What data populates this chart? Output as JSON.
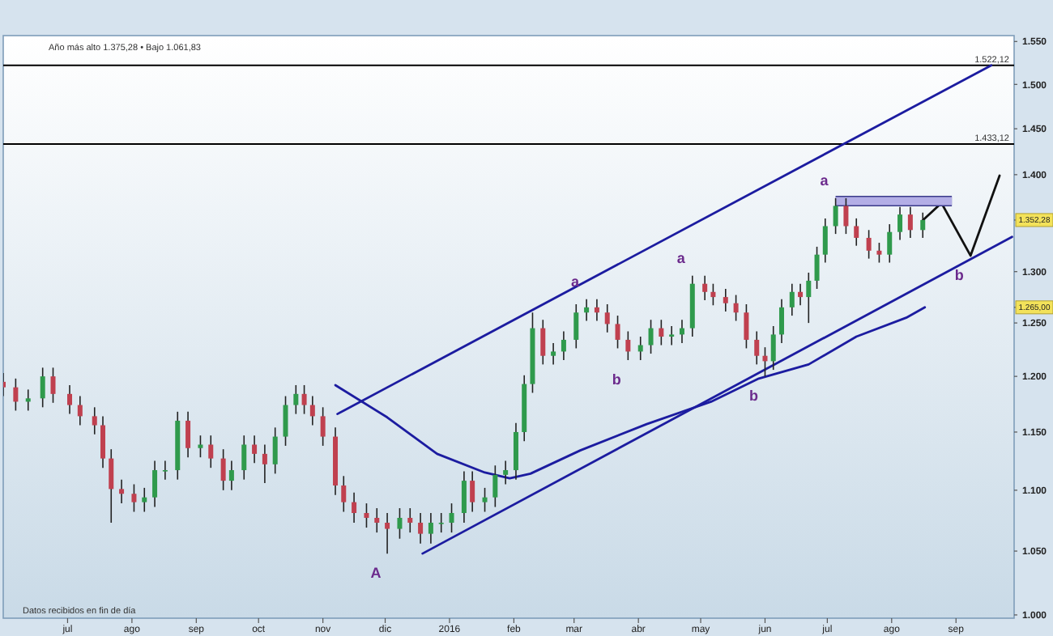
{
  "chart_data": {
    "type": "candlestick",
    "subtitle": "Año más alto 1.375,28 • Bajo 1.061,83",
    "log": "y",
    "xlim": [
      "2015-05-31",
      "2016-09-29"
    ],
    "ylim": [
      997.5,
      1557
    ],
    "xticks": [
      {
        "value": "2015-07-01",
        "label": "jul"
      },
      {
        "value": "2015-08-01",
        "label": "ago"
      },
      {
        "value": "2015-09-01",
        "label": "sep"
      },
      {
        "value": "2015-10-01",
        "label": "oct"
      },
      {
        "value": "2015-11-01",
        "label": "nov"
      },
      {
        "value": "2015-12-01",
        "label": "dic"
      },
      {
        "value": "2016-01-01",
        "label": "2016"
      },
      {
        "value": "2016-02-01",
        "label": "feb"
      },
      {
        "value": "2016-03-01",
        "label": "mar"
      },
      {
        "value": "2016-04-01",
        "label": "abr"
      },
      {
        "value": "2016-05-01",
        "label": "may"
      },
      {
        "value": "2016-06-01",
        "label": "jun"
      },
      {
        "value": "2016-07-01",
        "label": "jul"
      },
      {
        "value": "2016-08-01",
        "label": "ago"
      },
      {
        "value": "2016-09-01",
        "label": "sep"
      }
    ],
    "yticks": [
      {
        "value": 1000,
        "label": "1.000"
      },
      {
        "value": 1050,
        "label": "1.050"
      },
      {
        "value": 1100,
        "label": "1.100"
      },
      {
        "value": 1150,
        "label": "1.150"
      },
      {
        "value": 1200,
        "label": "1.200"
      },
      {
        "value": 1250,
        "label": "1.250"
      },
      {
        "value": 1300,
        "label": "1.300"
      },
      {
        "value": 1265,
        "label": "1.265,00"
      },
      {
        "value": 1352.28,
        "label": "1.352,28"
      },
      {
        "value": 1400,
        "label": "1.400"
      },
      {
        "value": 1450,
        "label": "1.450"
      },
      {
        "value": 1500,
        "label": "1.500"
      },
      {
        "value": 1550,
        "label": "1.550"
      }
    ],
    "x": [
      "2015-05-31",
      "2015-06-06",
      "2015-06-12",
      "2015-06-19",
      "2015-06-24",
      "2015-07-02",
      "2015-07-07",
      "2015-07-14",
      "2015-07-18",
      "2015-07-22",
      "2015-07-27",
      "2015-08-02",
      "2015-08-07",
      "2015-08-12",
      "2015-08-17",
      "2015-08-23",
      "2015-08-28",
      "2015-09-03",
      "2015-09-08",
      "2015-09-14",
      "2015-09-18",
      "2015-09-24",
      "2015-09-29",
      "2015-10-04",
      "2015-10-09",
      "2015-10-14",
      "2015-10-19",
      "2015-10-23",
      "2015-10-27",
      "2015-11-01",
      "2015-11-07",
      "2015-11-11",
      "2015-11-16",
      "2015-11-22",
      "2015-11-27",
      "2015-12-02",
      "2015-12-08",
      "2015-12-13",
      "2015-12-18",
      "2015-12-23",
      "2015-12-28",
      "2016-01-02",
      "2016-01-08",
      "2016-01-12",
      "2016-01-18",
      "2016-01-23",
      "2016-01-28",
      "2016-02-02",
      "2016-02-06",
      "2016-02-10",
      "2016-02-15",
      "2016-02-20",
      "2016-02-25",
      "2016-03-02",
      "2016-03-07",
      "2016-03-12",
      "2016-03-17",
      "2016-03-22",
      "2016-03-27",
      "2016-04-02",
      "2016-04-07",
      "2016-04-12",
      "2016-04-17",
      "2016-04-22",
      "2016-04-27",
      "2016-05-03",
      "2016-05-07",
      "2016-05-13",
      "2016-05-18",
      "2016-05-23",
      "2016-05-28",
      "2016-06-01",
      "2016-06-05",
      "2016-06-09",
      "2016-06-14",
      "2016-06-18",
      "2016-06-22",
      "2016-06-26",
      "2016-06-30",
      "2016-07-05",
      "2016-07-10",
      "2016-07-15",
      "2016-07-21",
      "2016-07-26",
      "2016-07-31",
      "2016-08-05",
      "2016-08-10",
      "2016-08-16"
    ],
    "ohlc": [
      [
        1195,
        1203,
        1182,
        1190
      ],
      [
        1190,
        1198,
        1169,
        1177
      ],
      [
        1177,
        1188,
        1169,
        1180
      ],
      [
        1180,
        1208,
        1172,
        1200
      ],
      [
        1200,
        1208,
        1176,
        1184
      ],
      [
        1184,
        1192,
        1166,
        1174
      ],
      [
        1174,
        1182,
        1156,
        1164
      ],
      [
        1164,
        1172,
        1148,
        1156
      ],
      [
        1156,
        1164,
        1119,
        1127
      ],
      [
        1127,
        1135,
        1073,
        1101
      ],
      [
        1101,
        1109,
        1089,
        1097
      ],
      [
        1097,
        1105,
        1082,
        1090
      ],
      [
        1090,
        1102,
        1082,
        1094
      ],
      [
        1094,
        1125,
        1086,
        1117
      ],
      [
        1117,
        1125,
        1109,
        1117
      ],
      [
        1117,
        1168,
        1109,
        1160
      ],
      [
        1160,
        1168,
        1128,
        1136
      ],
      [
        1136,
        1147,
        1128,
        1139
      ],
      [
        1139,
        1147,
        1119,
        1127
      ],
      [
        1127,
        1135,
        1100,
        1108
      ],
      [
        1108,
        1125,
        1100,
        1117
      ],
      [
        1117,
        1147,
        1109,
        1139
      ],
      [
        1139,
        1147,
        1123,
        1131
      ],
      [
        1131,
        1139,
        1106,
        1122
      ],
      [
        1122,
        1154,
        1114,
        1146
      ],
      [
        1146,
        1182,
        1138,
        1174
      ],
      [
        1174,
        1192,
        1166,
        1184
      ],
      [
        1184,
        1192,
        1166,
        1174
      ],
      [
        1174,
        1182,
        1156,
        1164
      ],
      [
        1164,
        1172,
        1138,
        1146
      ],
      [
        1146,
        1154,
        1096,
        1104
      ],
      [
        1104,
        1112,
        1082,
        1090
      ],
      [
        1090,
        1098,
        1073,
        1081
      ],
      [
        1081,
        1089,
        1069,
        1077
      ],
      [
        1077,
        1085,
        1065,
        1073
      ],
      [
        1073,
        1081,
        1048,
        1068
      ],
      [
        1068,
        1085,
        1060,
        1077
      ],
      [
        1077,
        1085,
        1065,
        1073
      ],
      [
        1073,
        1081,
        1056,
        1064
      ],
      [
        1064,
        1081,
        1056,
        1073
      ],
      [
        1073,
        1081,
        1065,
        1073
      ],
      [
        1073,
        1089,
        1065,
        1081
      ],
      [
        1081,
        1116,
        1073,
        1108
      ],
      [
        1108,
        1116,
        1082,
        1090
      ],
      [
        1090,
        1102,
        1082,
        1094
      ],
      [
        1094,
        1121,
        1086,
        1113
      ],
      [
        1113,
        1125,
        1105,
        1117
      ],
      [
        1117,
        1158,
        1109,
        1150
      ],
      [
        1150,
        1201,
        1142,
        1193
      ],
      [
        1193,
        1260,
        1185,
        1245
      ],
      [
        1245,
        1253,
        1211,
        1219
      ],
      [
        1219,
        1231,
        1211,
        1223
      ],
      [
        1223,
        1242,
        1215,
        1234
      ],
      [
        1234,
        1268,
        1226,
        1260
      ],
      [
        1260,
        1273,
        1252,
        1265
      ],
      [
        1265,
        1273,
        1252,
        1260
      ],
      [
        1260,
        1268,
        1241,
        1249
      ],
      [
        1249,
        1257,
        1226,
        1234
      ],
      [
        1234,
        1242,
        1215,
        1223
      ],
      [
        1223,
        1237,
        1215,
        1229
      ],
      [
        1229,
        1253,
        1221,
        1245
      ],
      [
        1245,
        1253,
        1229,
        1237
      ],
      [
        1237,
        1247,
        1229,
        1239
      ],
      [
        1239,
        1253,
        1231,
        1245
      ],
      [
        1245,
        1296,
        1237,
        1288
      ],
      [
        1288,
        1296,
        1272,
        1280
      ],
      [
        1280,
        1288,
        1267,
        1275
      ],
      [
        1275,
        1283,
        1261,
        1269
      ],
      [
        1269,
        1277,
        1252,
        1260
      ],
      [
        1260,
        1268,
        1226,
        1234
      ],
      [
        1234,
        1242,
        1211,
        1219
      ],
      [
        1219,
        1227,
        1200,
        1214
      ],
      [
        1214,
        1247,
        1206,
        1239
      ],
      [
        1239,
        1273,
        1231,
        1265
      ],
      [
        1265,
        1288,
        1257,
        1280
      ],
      [
        1280,
        1288,
        1267,
        1275
      ],
      [
        1275,
        1299,
        1250,
        1291
      ],
      [
        1291,
        1325,
        1283,
        1317
      ],
      [
        1317,
        1354,
        1309,
        1346
      ],
      [
        1346,
        1375,
        1338,
        1367
      ],
      [
        1367,
        1375,
        1338,
        1346
      ],
      [
        1346,
        1354,
        1326,
        1334
      ],
      [
        1334,
        1342,
        1313,
        1321
      ],
      [
        1321,
        1329,
        1309,
        1317
      ],
      [
        1317,
        1348,
        1309,
        1340
      ],
      [
        1340,
        1366,
        1332,
        1358
      ],
      [
        1358,
        1366,
        1334,
        1342
      ],
      [
        1342,
        1360,
        1334,
        1352.28
      ]
    ],
    "series": [
      {
        "type": "line",
        "color": "#1c1ca0",
        "x": [
          "2015-11-07",
          "2015-12-02",
          "2015-12-26",
          "2016-01-18",
          "2016-01-30",
          "2016-02-09",
          "2016-03-04",
          "2016-04-05",
          "2016-05-06",
          "2016-05-29",
          "2016-06-22",
          "2016-07-15",
          "2016-08-08",
          "2016-08-17"
        ],
        "values": [
          1192,
          1163,
          1131,
          1115,
          1110,
          1114,
          1134,
          1157,
          1177,
          1198,
          1211,
          1237,
          1255,
          1265
        ]
      },
      {
        "type": "line",
        "color": "#1c1ca0",
        "x": [
          "2015-11-08",
          "2016-09-18"
        ],
        "values": [
          1166,
          1522
        ]
      },
      {
        "type": "line",
        "color": "#1c1ca0",
        "x": [
          "2015-12-19",
          "2016-09-28"
        ],
        "values": [
          1048,
          1335
        ]
      },
      {
        "type": "line",
        "color": "#111111",
        "x": [
          "2016-08-16",
          "2016-08-25",
          "2016-09-08",
          "2016-09-22"
        ],
        "values": [
          1352,
          1370,
          1316,
          1399
        ]
      },
      {
        "type": "line",
        "color": "#b3aee6",
        "x": [
          "2016-07-05",
          "2016-08-30"
        ],
        "values": [
          1372,
          1372
        ]
      }
    ],
    "ref_lines": [
      {
        "axis": "y",
        "value": 1522.12,
        "label": "1.522,12",
        "color": "#000000"
      },
      {
        "axis": "y",
        "value": 1433.12,
        "label": "1.433,12",
        "color": "#000000"
      }
    ],
    "annotations": [
      {
        "text": "A",
        "x": "2015-12-02",
        "y": 1048
      },
      {
        "text": "a",
        "x": "2016-03-07",
        "y": 1273
      },
      {
        "text": "b",
        "x": "2016-03-27",
        "y": 1215
      },
      {
        "text": "a",
        "x": "2016-04-27",
        "y": 1296
      },
      {
        "text": "b",
        "x": "2016-06-01",
        "y": 1200
      },
      {
        "text": "a",
        "x": "2016-07-05",
        "y": 1375
      },
      {
        "text": "b",
        "x": "2016-09-08",
        "y": 1316
      },
      "Datos recibidos en fin de día"
    ]
  }
}
